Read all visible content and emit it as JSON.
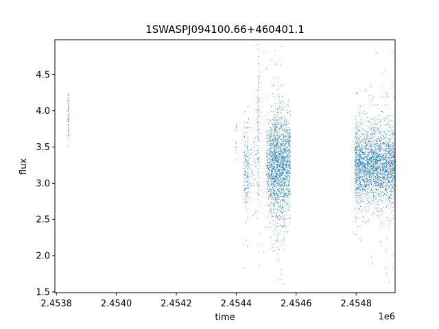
{
  "chart_data": {
    "type": "scatter",
    "title": "1SWASPJ094100.66+460401.1",
    "xlabel": "time",
    "ylabel": "flux",
    "x_offset_label": "1e6",
    "xlim": [
      2453795,
      2454930
    ],
    "ylim": [
      1.49,
      4.98
    ],
    "x_ticks": [
      2453800,
      2454000,
      2454200,
      2454400,
      2454600,
      2454800
    ],
    "x_tick_labels": [
      "2.4538",
      "2.4540",
      "2.4542",
      "2.4544",
      "2.4546",
      "2.4548"
    ],
    "y_ticks": [
      1.5,
      2.0,
      2.5,
      3.0,
      3.5,
      4.0,
      4.5
    ],
    "y_tick_labels": [
      "1.5",
      "2.0",
      "2.5",
      "3.0",
      "3.5",
      "4.0",
      "4.5"
    ],
    "grid": false,
    "legend": "none",
    "marker_color": "#1f77b4",
    "series": [
      {
        "clusters": [
          {
            "x_range": [
              2453837,
              2453841
            ],
            "y_center": 3.95,
            "y_spread": 0.18,
            "n": 60
          },
          {
            "x_range": [
              2454397,
              2454400
            ],
            "y_center": 3.6,
            "y_spread": 0.12,
            "n": 15
          },
          {
            "x_range": [
              2454425,
              2454440
            ],
            "y_center": 3.2,
            "y_spread": 0.3,
            "n": 180
          },
          {
            "x_range": [
              2454440,
              2454470
            ],
            "y_center": 3.2,
            "y_spread": 0.25,
            "n": 60
          },
          {
            "x_range": [
              2454470,
              2454476
            ],
            "y_center": 3.6,
            "y_spread": 0.6,
            "n": 120
          },
          {
            "x_range": [
              2454500,
              2454510
            ],
            "y_center": 3.25,
            "y_spread": 0.3,
            "n": 150
          },
          {
            "x_range": [
              2454510,
              2454580
            ],
            "y_center": 3.25,
            "y_spread": 0.35,
            "n": 1700
          },
          {
            "x_range": [
              2454520,
              2454560
            ],
            "y_center": 3.2,
            "y_spread": 0.6,
            "n": 300
          },
          {
            "x_range": [
              2454795,
              2454810
            ],
            "y_center": 3.25,
            "y_spread": 0.28,
            "n": 350
          },
          {
            "x_range": [
              2454810,
              2454930
            ],
            "y_center": 3.25,
            "y_spread": 0.25,
            "n": 2200
          },
          {
            "x_range": [
              2454795,
              2454930
            ],
            "y_center": 3.3,
            "y_spread": 0.5,
            "n": 300
          }
        ],
        "outliers": [
          [
            2454428,
            1.83
          ],
          [
            2454432,
            2.22
          ],
          [
            2454436,
            2.13
          ],
          [
            2454492,
            4.8
          ],
          [
            2454500,
            4.58
          ],
          [
            2454515,
            4.7
          ],
          [
            2454530,
            4.65
          ],
          [
            2454535,
            4.47
          ],
          [
            2454540,
            4.35
          ],
          [
            2454545,
            1.68
          ],
          [
            2454548,
            1.75
          ],
          [
            2454495,
            2.4
          ],
          [
            2454490,
            2.05
          ],
          [
            2454866,
            4.8
          ],
          [
            2454895,
            4.55
          ],
          [
            2454924,
            4.8
          ],
          [
            2454910,
            1.63
          ],
          [
            2454900,
            1.75
          ],
          [
            2454855,
            1.9
          ],
          [
            2454880,
            2.2
          ],
          [
            2454840,
            2.5
          ],
          [
            2454927,
            4.7
          ],
          [
            2454905,
            4.25
          ],
          [
            2454830,
            4.3
          ],
          [
            2454920,
            2.0
          ]
        ]
      }
    ]
  }
}
